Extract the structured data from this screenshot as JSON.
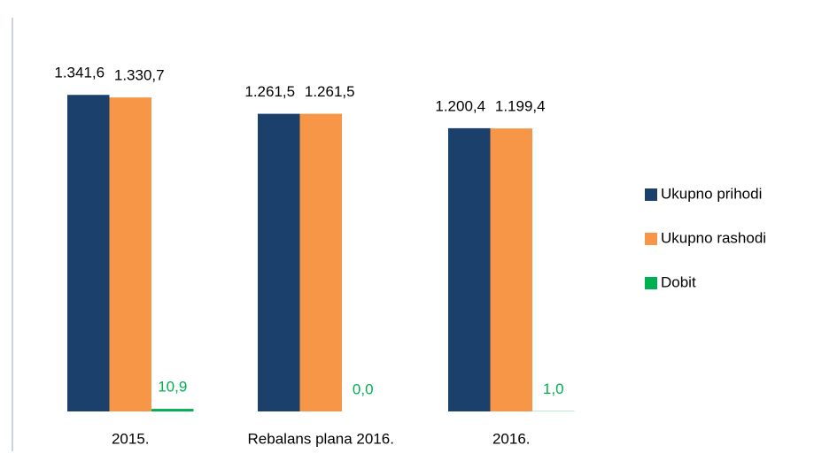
{
  "chart_data": {
    "type": "bar",
    "categories": [
      "2015.",
      "Rebalans plana 2016.",
      "2016."
    ],
    "series": [
      {
        "name": "Ukupno prihodi",
        "color": "#1b406c",
        "values": [
          1341.6,
          1261.5,
          1200.4
        ],
        "value_labels": [
          "1.341,6",
          "1.261,5",
          "1.200,4"
        ]
      },
      {
        "name": "Ukupno rashodi",
        "color": "#f79646",
        "values": [
          1330.7,
          1261.5,
          1199.4
        ],
        "value_labels": [
          "1.330,7",
          "1.261,5",
          "1.199,4"
        ]
      },
      {
        "name": "Dobit",
        "color": "#00b050",
        "values": [
          10.9,
          0.0,
          1.0
        ],
        "value_labels": [
          "10,9",
          "0,0",
          "1,0"
        ]
      }
    ],
    "ylim": [
      0,
      1500
    ],
    "legend": "right"
  }
}
